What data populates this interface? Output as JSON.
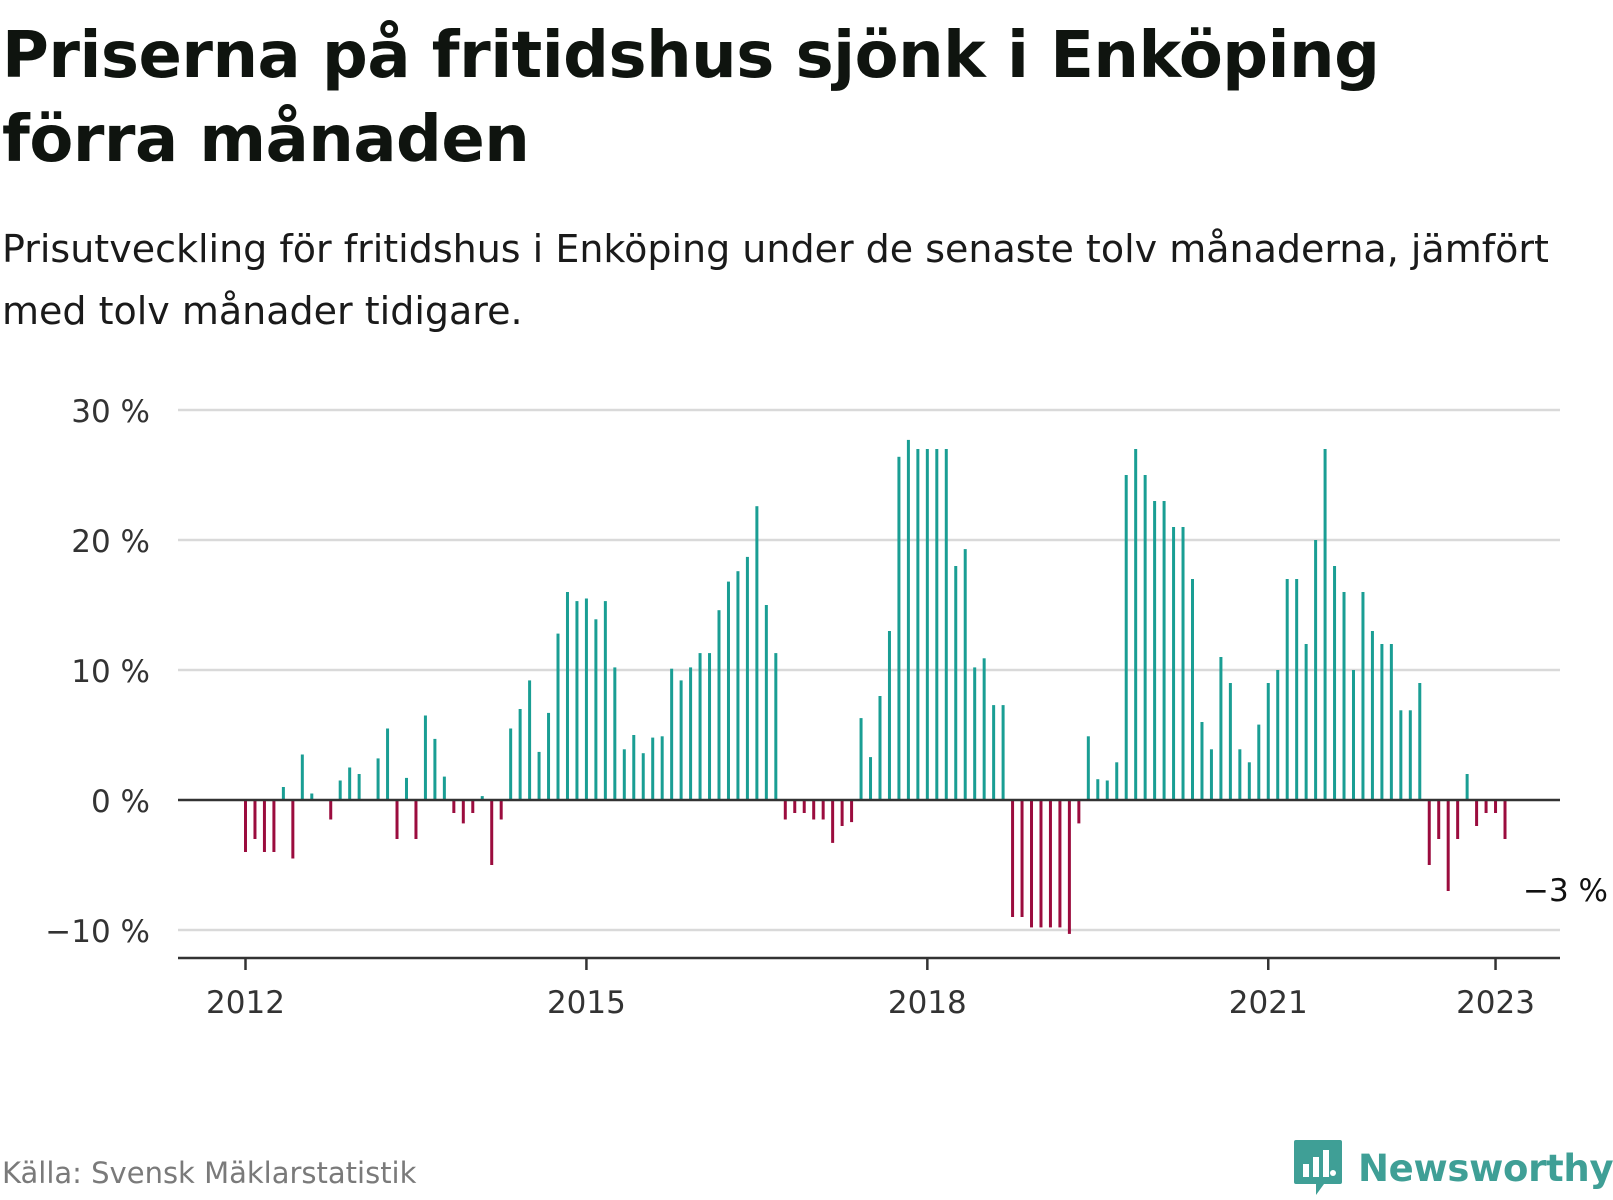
{
  "header": {
    "title": "Priserna på fritidshus sjönk i Enköping förra månaden",
    "subtitle": "Prisutveckling för fritidshus i Enköping under de senaste tolv månaderna, jämfört med tolv månader tidigare."
  },
  "footer": {
    "source": "Källa: Svensk Mäklarstatistik",
    "brand": "Newsworthy"
  },
  "colors": {
    "positive": "#1a9e94",
    "negative": "#9b0c3e",
    "grid": "#d9d9d9",
    "axis": "#333333",
    "brand": "#3f9f96"
  },
  "chart_data": {
    "type": "bar",
    "title": "Priserna på fritidshus sjönk i Enköping förra månaden",
    "subtitle": "Prisutveckling för fritidshus i Enköping under de senaste tolv månaderna, jämfört med tolv månader tidigare.",
    "xlabel": "",
    "ylabel": "",
    "x_start": "2012-01",
    "x_end": "2023-01",
    "x_ticks": [
      "2012",
      "2015",
      "2018",
      "2021",
      "2023"
    ],
    "y_ticks": [
      "30 %",
      "20 %",
      "10 %",
      "0 %",
      "−10 %"
    ],
    "ylim": [
      -12,
      30
    ],
    "grid": true,
    "annotation": "−3 %",
    "series": [
      {
        "values": [
          -4,
          -3,
          -4,
          -4,
          1,
          -4.5,
          3.5,
          0.5,
          0,
          -1.5,
          1.5,
          2.5,
          2,
          0,
          3.2,
          5.5,
          -3,
          1.7,
          -3,
          6.5,
          4.7,
          1.8,
          -1,
          -1.8,
          -1,
          0.3,
          -5,
          -1.5,
          5.5,
          7,
          9.2,
          3.7,
          6.7,
          12.8,
          16,
          15.3,
          15.5,
          13.9,
          15.3,
          10.2,
          3.9,
          5,
          3.6,
          4.8,
          4.9,
          10.1,
          9.2,
          10.2,
          11.3,
          11.3,
          14.6,
          16.8,
          17.6,
          18.7,
          22.6,
          15,
          11.3,
          -1.5,
          -1,
          -1,
          -1.5,
          -1.5,
          -3.3,
          -2,
          -1.7,
          6.3,
          3.3,
          8,
          13,
          26.4,
          27.7,
          27,
          27,
          27,
          27,
          18,
          19.3,
          10.2,
          10.9,
          7.3,
          7.3,
          -9,
          -9,
          -9.8,
          -9.8,
          -9.8,
          -9.8,
          -10.3,
          -1.8,
          4.9,
          1.6,
          1.5,
          2.9,
          25,
          27,
          25,
          23,
          23,
          21,
          21,
          17,
          6,
          3.9,
          11,
          9,
          3.9,
          2.9,
          5.8,
          9,
          10,
          17,
          17,
          12,
          20,
          27,
          18,
          16,
          10,
          16,
          13,
          12,
          12,
          6.9,
          6.9,
          9,
          -5,
          -3,
          -7,
          -3,
          2,
          -2,
          -1,
          -1,
          -3
        ]
      }
    ]
  }
}
